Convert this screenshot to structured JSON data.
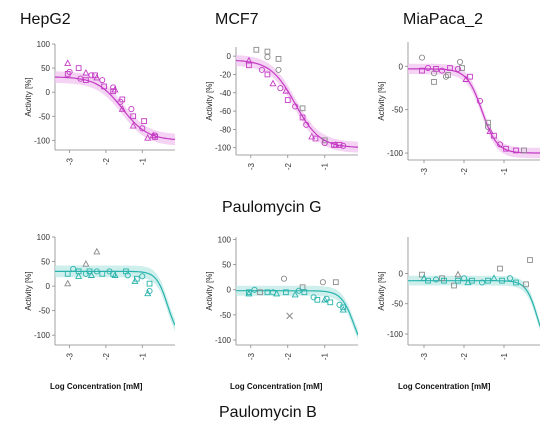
{
  "column_titles": [
    "HepG2",
    "MCF7",
    "MiaPaca_2"
  ],
  "compound_titles": [
    "Paulomycin G",
    "Paulomycin B"
  ],
  "x_axis_title": "Log Concentration [mM]",
  "colors": {
    "magenta": "#c43bc4",
    "magenta_band": "#f1c4f0",
    "teal": "#2ab3ad",
    "teal_band": "#bfe9e6",
    "gray": "#8a8a8a",
    "axis": "#888888"
  },
  "chart_data": [
    {
      "type": "scatter",
      "id": "g-hepg2",
      "column": "HepG2",
      "compound": "Paulomycin G",
      "ylabel": "Activity [%]",
      "xlim": [
        -3.4,
        -0.1
      ],
      "ylim": [
        -120,
        100
      ],
      "xticks": [
        -3,
        -2,
        -1
      ],
      "yticks": [
        100,
        50,
        0,
        -50,
        -100
      ],
      "tick_labels_x": [
        "-3",
        "-2",
        "-1"
      ],
      "tick_labels_y": [
        "100",
        "50",
        "0",
        "-50",
        "-100"
      ],
      "fit": {
        "top": 32,
        "bottom": -100,
        "ec50": -1.55,
        "hill": 1.25,
        "band": 12
      },
      "series": [
        {
          "marker": "triangle",
          "color": "magenta",
          "points": [
            [
              -3.05,
              60
            ],
            [
              -2.55,
              40
            ],
            [
              -2.25,
              30
            ],
            [
              -1.75,
              5
            ],
            [
              -1.55,
              -35
            ],
            [
              -1.25,
              -70
            ],
            [
              -0.85,
              -95
            ],
            [
              -0.7,
              -90
            ]
          ]
        },
        {
          "marker": "square",
          "color": "magenta",
          "points": [
            [
              -3.05,
              38
            ],
            [
              -2.75,
              50
            ],
            [
              -2.55,
              25
            ],
            [
              -2.3,
              35
            ],
            [
              -2.05,
              12
            ],
            [
              -1.8,
              2
            ],
            [
              -1.55,
              -15
            ],
            [
              -1.25,
              -50
            ],
            [
              -0.95,
              -60
            ],
            [
              -0.65,
              -93
            ]
          ]
        },
        {
          "marker": "circle",
          "color": "magenta",
          "points": [
            [
              -3.0,
              42
            ],
            [
              -2.7,
              28
            ],
            [
              -2.4,
              35
            ],
            [
              -2.1,
              25
            ],
            [
              -1.8,
              10
            ],
            [
              -1.6,
              -20
            ],
            [
              -1.3,
              -35
            ],
            [
              -1.0,
              -75
            ],
            [
              -0.65,
              -90
            ]
          ]
        }
      ]
    },
    {
      "type": "scatter",
      "id": "g-mcf7",
      "column": "MCF7",
      "compound": "Paulomycin G",
      "ylabel": "Activity [%]",
      "xlim": [
        -3.4,
        -0.1
      ],
      "ylim": [
        -108,
        10
      ],
      "xticks": [
        -3,
        -2,
        -1
      ],
      "yticks": [
        0,
        -20,
        -40,
        -60,
        -80,
        -100
      ],
      "tick_labels_x": [
        "-3",
        "-2",
        "-1"
      ],
      "tick_labels_y": [
        "0",
        "-20",
        "-40",
        "-60",
        "-80",
        "-100"
      ],
      "fit": {
        "top": -4,
        "bottom": -100,
        "ec50": -1.8,
        "hill": 1.3,
        "band": 6
      },
      "series": [
        {
          "marker": "square",
          "color": "gray",
          "points": [
            [
              -2.85,
              7
            ],
            [
              -2.55,
              5
            ],
            [
              -2.25,
              -3
            ],
            [
              -1.6,
              -57
            ],
            [
              -1.0,
              -92
            ]
          ]
        },
        {
          "marker": "circle",
          "color": "gray",
          "points": [
            [
              -2.55,
              -1
            ],
            [
              -2.25,
              -15
            ]
          ]
        },
        {
          "marker": "square",
          "color": "magenta",
          "points": [
            [
              -3.05,
              -10
            ],
            [
              -2.55,
              -20
            ],
            [
              -2.0,
              -48
            ],
            [
              -1.6,
              -67
            ],
            [
              -1.25,
              -90
            ],
            [
              -0.75,
              -97
            ],
            [
              -0.6,
              -97
            ]
          ]
        },
        {
          "marker": "triangle",
          "color": "magenta",
          "points": [
            [
              -3.05,
              -5
            ],
            [
              -2.4,
              -30
            ],
            [
              -2.05,
              -38
            ],
            [
              -1.35,
              -88
            ],
            [
              -0.7,
              -97
            ]
          ]
        },
        {
          "marker": "circle",
          "color": "magenta",
          "points": [
            [
              -2.7,
              -15
            ],
            [
              -2.2,
              -35
            ],
            [
              -1.8,
              -55
            ],
            [
              -1.5,
              -75
            ],
            [
              -1.0,
              -95
            ],
            [
              -0.5,
              -98
            ]
          ]
        }
      ]
    },
    {
      "type": "scatter",
      "id": "g-mia",
      "column": "MiaPaca_2",
      "compound": "Paulomycin G",
      "ylabel": "Activity [%]",
      "xlim": [
        -3.4,
        -0.1
      ],
      "ylim": [
        -108,
        28
      ],
      "xticks": [
        -3,
        -2,
        -1
      ],
      "yticks": [
        0,
        -50,
        -100
      ],
      "tick_labels_x": [
        "-3",
        "-2",
        "-1"
      ],
      "tick_labels_y": [
        "0",
        "-50",
        "-100"
      ],
      "fit": {
        "top": -3,
        "bottom": -100,
        "ec50": -1.55,
        "hill": 2.3,
        "band": 6
      },
      "series": [
        {
          "marker": "circle",
          "color": "gray",
          "points": [
            [
              -3.05,
              10
            ],
            [
              -2.75,
              -8
            ],
            [
              -2.45,
              -12
            ],
            [
              -2.1,
              5
            ],
            [
              -1.4,
              -70
            ]
          ]
        },
        {
          "marker": "square",
          "color": "gray",
          "points": [
            [
              -2.75,
              -18
            ],
            [
              -2.4,
              -10
            ],
            [
              -2.05,
              -2
            ],
            [
              -1.4,
              -65
            ],
            [
              -0.5,
              -97
            ]
          ]
        },
        {
          "marker": "square",
          "color": "magenta",
          "points": [
            [
              -3.05,
              -5
            ],
            [
              -2.7,
              -3
            ],
            [
              -2.35,
              -2
            ],
            [
              -1.85,
              -12
            ],
            [
              -1.25,
              -80
            ],
            [
              -0.95,
              -95
            ],
            [
              -0.7,
              -97
            ]
          ]
        },
        {
          "marker": "circle",
          "color": "magenta",
          "points": [
            [
              -2.9,
              -2
            ],
            [
              -2.55,
              -5
            ],
            [
              -2.15,
              -3
            ],
            [
              -1.6,
              -40
            ],
            [
              -1.1,
              -90
            ]
          ]
        },
        {
          "marker": "triangle",
          "color": "magenta",
          "points": [
            [
              -1.95,
              -15
            ],
            [
              -1.35,
              -75
            ]
          ]
        }
      ]
    },
    {
      "type": "scatter",
      "id": "b-hepg2",
      "column": "HepG2",
      "compound": "Paulomycin B",
      "ylabel": "Activity [%]",
      "xlim": [
        -3.4,
        -0.1
      ],
      "ylim": [
        -120,
        100
      ],
      "xticks": [
        -3,
        -2,
        -1
      ],
      "yticks": [
        100,
        50,
        0,
        -50,
        -100
      ],
      "tick_labels_x": [
        "-3",
        "-2",
        "-1"
      ],
      "tick_labels_y": [
        "100",
        "50",
        "0",
        "-50",
        "-100"
      ],
      "fit": {
        "top": 30,
        "bottom": -110,
        "ec50": -0.3,
        "hill": 2.8,
        "band": 12
      },
      "series": [
        {
          "marker": "triangle",
          "color": "gray",
          "points": [
            [
              -2.25,
              70
            ],
            [
              -2.55,
              45
            ],
            [
              -3.05,
              5
            ]
          ]
        },
        {
          "marker": "triangle",
          "color": "teal",
          "points": [
            [
              -2.75,
              20
            ],
            [
              -2.4,
              22
            ],
            [
              -1.75,
              22
            ],
            [
              -1.2,
              10
            ],
            [
              -0.85,
              -15
            ]
          ]
        },
        {
          "marker": "square",
          "color": "teal",
          "points": [
            [
              -3.05,
              25
            ],
            [
              -2.75,
              30
            ],
            [
              -2.45,
              30
            ],
            [
              -2.1,
              25
            ],
            [
              -1.8,
              25
            ],
            [
              -1.45,
              30
            ],
            [
              -1.15,
              15
            ],
            [
              -0.8,
              5
            ]
          ]
        },
        {
          "marker": "circle",
          "color": "teal",
          "points": [
            [
              -2.9,
              35
            ],
            [
              -2.55,
              25
            ],
            [
              -2.25,
              30
            ],
            [
              -1.9,
              30
            ],
            [
              -1.4,
              22
            ],
            [
              -1.0,
              20
            ],
            [
              -0.8,
              -10
            ]
          ]
        }
      ]
    },
    {
      "type": "scatter",
      "id": "b-mcf7",
      "column": "MCF7",
      "compound": "Paulomycin B",
      "ylabel": "Activity [%]",
      "xlim": [
        -3.4,
        -0.1
      ],
      "ylim": [
        -110,
        105
      ],
      "xticks": [
        -3,
        -2,
        -1
      ],
      "yticks": [
        100,
        50,
        0,
        -50,
        -100
      ],
      "tick_labels_x": [
        "-3",
        "-2",
        "-1"
      ],
      "tick_labels_y": [
        "100",
        "50",
        "0",
        "-50",
        "-100"
      ],
      "fit": {
        "top": -2,
        "bottom": -140,
        "ec50": -0.2,
        "hill": 2.5,
        "band": 10
      },
      "series": [
        {
          "marker": "circle",
          "color": "gray",
          "points": [
            [
              -2.1,
              22
            ],
            [
              -1.05,
              15
            ]
          ]
        },
        {
          "marker": "square",
          "color": "gray",
          "points": [
            [
              -2.75,
              -5
            ],
            [
              -1.6,
              5
            ],
            [
              -0.7,
              15
            ]
          ]
        },
        {
          "marker": "cross",
          "color": "gray",
          "points": [
            [
              -1.95,
              -52
            ]
          ]
        },
        {
          "marker": "square",
          "color": "teal",
          "points": [
            [
              -3.05,
              -5
            ],
            [
              -2.55,
              -5
            ],
            [
              -2.05,
              -5
            ],
            [
              -1.55,
              -5
            ],
            [
              -1.2,
              -20
            ],
            [
              -0.85,
              -25
            ],
            [
              -0.5,
              -35
            ]
          ]
        },
        {
          "marker": "triangle",
          "color": "teal",
          "points": [
            [
              -3.05,
              -8
            ],
            [
              -2.3,
              -8
            ],
            [
              -1.8,
              -10
            ],
            [
              -1.0,
              -20
            ],
            [
              -0.5,
              -40
            ]
          ]
        },
        {
          "marker": "circle",
          "color": "teal",
          "points": [
            [
              -2.9,
              0
            ],
            [
              -2.4,
              -5
            ],
            [
              -1.7,
              -2
            ],
            [
              -1.3,
              -15
            ],
            [
              -0.95,
              -18
            ],
            [
              -0.6,
              -30
            ]
          ]
        }
      ]
    },
    {
      "type": "scatter",
      "id": "b-mia",
      "column": "MiaPaca_2",
      "compound": "Paulomycin B",
      "ylabel": "Activity [%]",
      "xlim": [
        -3.4,
        -0.1
      ],
      "ylim": [
        -118,
        60
      ],
      "xticks": [
        -3,
        -2,
        -1
      ],
      "yticks": [
        0,
        -50,
        -100
      ],
      "tick_labels_x": [
        "-3",
        "-2",
        "-1"
      ],
      "tick_labels_y": [
        "0",
        "-50",
        "-100"
      ],
      "fit": {
        "top": -12,
        "bottom": -140,
        "ec50": -0.15,
        "hill": 3.0,
        "band": 8
      },
      "series": [
        {
          "marker": "square",
          "color": "gray",
          "points": [
            [
              -3.05,
              -2
            ],
            [
              -2.55,
              -8
            ],
            [
              -2.25,
              -20
            ],
            [
              -1.1,
              8
            ],
            [
              -0.35,
              22
            ],
            [
              -0.45,
              -18
            ]
          ]
        },
        {
          "marker": "triangle",
          "color": "gray",
          "points": [
            [
              -2.15,
              -2
            ]
          ]
        },
        {
          "marker": "square",
          "color": "teal",
          "points": [
            [
              -2.9,
              -12
            ],
            [
              -2.5,
              -12
            ],
            [
              -2.15,
              -12
            ],
            [
              -1.8,
              -12
            ],
            [
              -1.4,
              -12
            ],
            [
              -1.05,
              -12
            ],
            [
              -0.7,
              -15
            ]
          ]
        },
        {
          "marker": "circle",
          "color": "teal",
          "points": [
            [
              -2.7,
              -10
            ],
            [
              -2.0,
              -8
            ],
            [
              -1.55,
              -15
            ],
            [
              -0.85,
              -8
            ]
          ]
        },
        {
          "marker": "triangle",
          "color": "teal",
          "points": [
            [
              -3.0,
              -8
            ],
            [
              -1.9,
              -15
            ],
            [
              -1.25,
              -8
            ]
          ]
        }
      ]
    }
  ]
}
